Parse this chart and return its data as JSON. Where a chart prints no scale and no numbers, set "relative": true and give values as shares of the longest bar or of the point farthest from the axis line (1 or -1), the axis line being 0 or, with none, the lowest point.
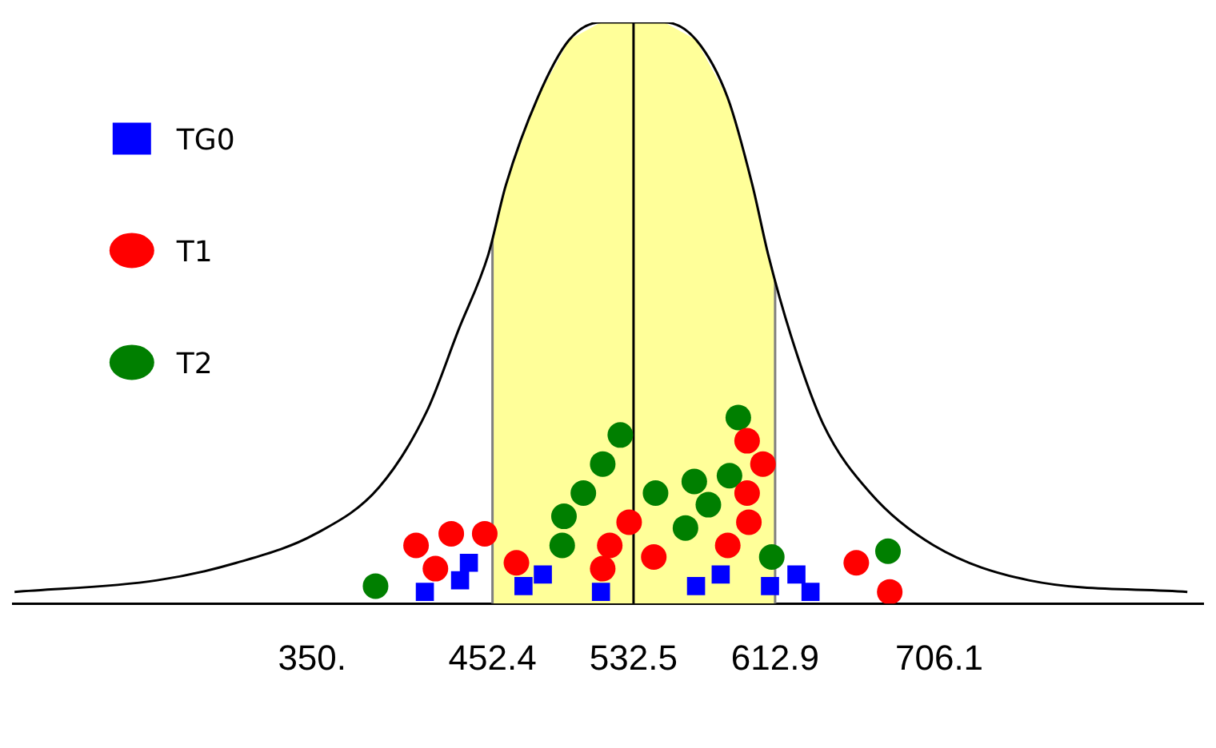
{
  "chart_data": {
    "type": "scatter",
    "relative": true,
    "xlim": [
      180,
      856
    ],
    "xticks": [
      {
        "value": 350,
        "label": "350."
      },
      452.4,
      532.5,
      612.9,
      706.1
    ],
    "legend": "top left",
    "bands": [
      {
        "axis": "x",
        "from": 452.4,
        "to": 612.9,
        "color": "#ffff99"
      }
    ],
    "ref_lines": [
      {
        "axis": "x",
        "value": 452.4,
        "color": "#808080"
      },
      {
        "axis": "x",
        "value": 532.5,
        "color": "#000000"
      },
      {
        "axis": "x",
        "value": 612.9,
        "color": "#808080"
      }
    ],
    "series": [
      {
        "type": "line",
        "color": "#000000",
        "marker": "none",
        "x": [
          181,
          262,
          307,
          352,
          388,
          415,
          433,
          450,
          460,
          478,
          496,
          514,
          532,
          550,
          568,
          586,
          600,
          609,
          622,
          640,
          667,
          703,
          757,
          847
        ],
        "values": [
          0.02,
          0.04,
          0.07,
          0.12,
          0.2,
          0.33,
          0.47,
          0.6,
          0.72,
          0.87,
          0.97,
          1,
          1,
          1,
          0.97,
          0.87,
          0.72,
          0.6,
          0.46,
          0.31,
          0.19,
          0.1,
          0.04,
          0.02
        ]
      },
      {
        "name": "TG0",
        "marker": "square",
        "color": "#0000ff",
        "x": [
          414,
          434,
          439,
          470,
          481,
          514,
          568,
          582,
          610,
          625,
          633
        ],
        "values": [
          0.02,
          0.04,
          0.07,
          0.03,
          0.05,
          0.02,
          0.03,
          0.05,
          0.03,
          0.05,
          0.02
        ]
      },
      {
        "name": "T1",
        "marker": "circle",
        "color": "#ff0000",
        "x": [
          409,
          420,
          429,
          448,
          466,
          515,
          519,
          530,
          544,
          586,
          598,
          597,
          606,
          597,
          659,
          678
        ],
        "values": [
          0.1,
          0.06,
          0.12,
          0.12,
          0.07,
          0.06,
          0.1,
          0.14,
          0.08,
          0.1,
          0.14,
          0.19,
          0.24,
          0.28,
          0.07,
          0.02
        ]
      },
      {
        "name": "T2",
        "marker": "circle",
        "color": "#007f00",
        "x": [
          386,
          492,
          493,
          504,
          515,
          525,
          545,
          562,
          567,
          575,
          587,
          592,
          611,
          677
        ],
        "values": [
          0.03,
          0.1,
          0.15,
          0.19,
          0.24,
          0.29,
          0.19,
          0.13,
          0.21,
          0.17,
          0.22,
          0.32,
          0.08,
          0.09
        ]
      }
    ]
  }
}
